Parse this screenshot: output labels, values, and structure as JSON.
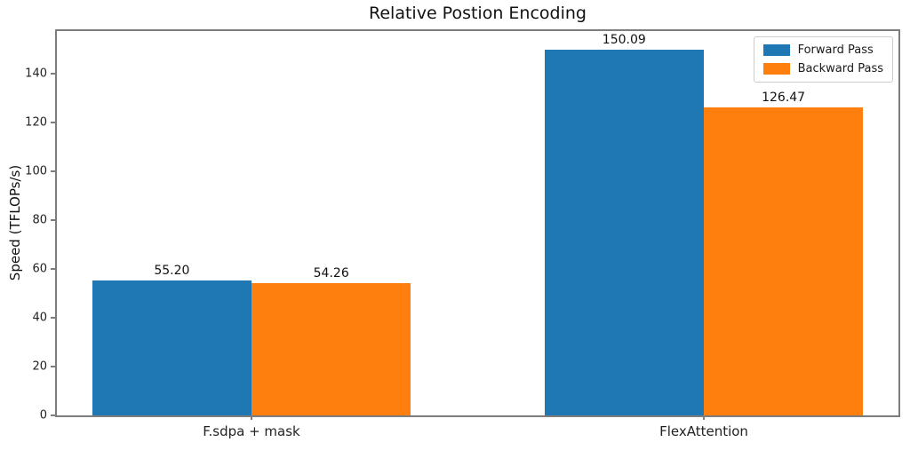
{
  "chart_data": {
    "type": "bar",
    "title": "Relative Postion Encoding",
    "xlabel": "",
    "ylabel": "Speed (TFLOPs/s)",
    "categories": [
      "F.sdpa + mask",
      "FlexAttention"
    ],
    "series": [
      {
        "name": "Forward Pass",
        "color": "#1f77b4",
        "values": [
          55.2,
          150.09
        ],
        "value_labels": [
          "55.20",
          "150.09"
        ]
      },
      {
        "name": "Backward Pass",
        "color": "#ff7f0e",
        "values": [
          54.26,
          126.47
        ],
        "value_labels": [
          "54.26",
          "126.47"
        ]
      }
    ],
    "ylim": [
      0,
      157.6
    ],
    "yticks": [
      0,
      20,
      40,
      60,
      80,
      100,
      120,
      140
    ],
    "grid": false,
    "legend_position": "upper right"
  },
  "style": {
    "spine_color": "#7d7d7d",
    "text_color": "#111111",
    "background": "#ffffff"
  }
}
